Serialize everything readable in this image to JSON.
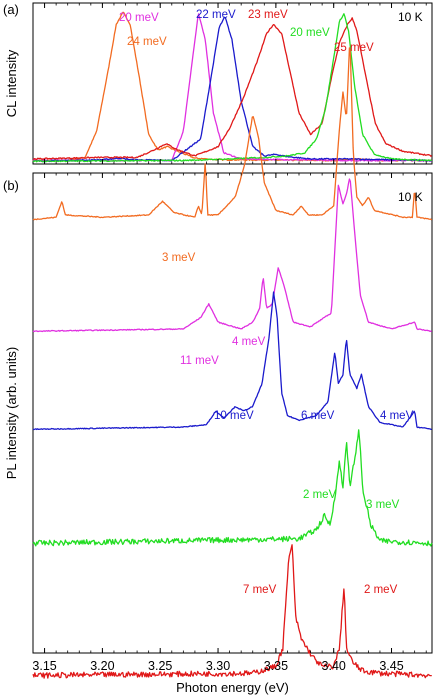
{
  "chart_data": [
    {
      "type": "line",
      "panel_label": "(a)",
      "ylabel": "CL intensity",
      "temperature": "10 K",
      "xlim": [
        3.14,
        3.485
      ],
      "ylim": [
        0,
        1.0
      ],
      "series": [
        {
          "color": "#f26b21",
          "points": [
            [
              3.14,
              0.01
            ],
            [
              3.17,
              0.01
            ],
            [
              3.185,
              0.03
            ],
            [
              3.195,
              0.2
            ],
            [
              3.205,
              0.6
            ],
            [
              3.212,
              0.9
            ],
            [
              3.218,
              0.98
            ],
            [
              3.224,
              0.9
            ],
            [
              3.232,
              0.55
            ],
            [
              3.24,
              0.18
            ],
            [
              3.248,
              0.08
            ],
            [
              3.256,
              0.1
            ],
            [
              3.265,
              0.07
            ],
            [
              3.28,
              0.025
            ],
            [
              3.3,
              0.015
            ],
            [
              3.4,
              0.01
            ],
            [
              3.42,
              0.02
            ],
            [
              3.44,
              0.01
            ],
            [
              3.485,
              0.01
            ]
          ]
        },
        {
          "color": "#e030e0",
          "points": [
            [
              3.14,
              0.01
            ],
            [
              3.26,
              0.01
            ],
            [
              3.27,
              0.2
            ],
            [
              3.277,
              0.62
            ],
            [
              3.283,
              0.97
            ],
            [
              3.289,
              0.8
            ],
            [
              3.296,
              0.32
            ],
            [
              3.305,
              0.06
            ],
            [
              3.32,
              0.02
            ],
            [
              3.41,
              0.01
            ],
            [
              3.485,
              0.01
            ]
          ]
        },
        {
          "color": "#1a1acc",
          "points": [
            [
              3.14,
              0.005
            ],
            [
              3.2,
              0.015
            ],
            [
              3.215,
              0.025
            ],
            [
              3.225,
              0.015
            ],
            [
              3.26,
              0.01
            ],
            [
              3.285,
              0.15
            ],
            [
              3.295,
              0.6
            ],
            [
              3.301,
              0.88
            ],
            [
              3.306,
              0.95
            ],
            [
              3.312,
              0.8
            ],
            [
              3.32,
              0.4
            ],
            [
              3.33,
              0.1
            ],
            [
              3.34,
              0.04
            ],
            [
              3.35,
              0.05
            ],
            [
              3.36,
              0.035
            ],
            [
              3.38,
              0.02
            ],
            [
              3.41,
              0.02
            ],
            [
              3.485,
              0.01
            ]
          ]
        },
        {
          "color": "#e01818",
          "points": [
            [
              3.14,
              0.02
            ],
            [
              3.2,
              0.03
            ],
            [
              3.23,
              0.03
            ],
            [
              3.245,
              0.08
            ],
            [
              3.255,
              0.12
            ],
            [
              3.265,
              0.08
            ],
            [
              3.28,
              0.04
            ],
            [
              3.3,
              0.1
            ],
            [
              3.31,
              0.22
            ],
            [
              3.322,
              0.42
            ],
            [
              3.334,
              0.66
            ],
            [
              3.342,
              0.84
            ],
            [
              3.348,
              0.9
            ],
            [
              3.355,
              0.84
            ],
            [
              3.362,
              0.6
            ],
            [
              3.37,
              0.32
            ],
            [
              3.38,
              0.18
            ],
            [
              3.39,
              0.25
            ],
            [
              3.398,
              0.55
            ],
            [
              3.405,
              0.78
            ],
            [
              3.412,
              0.9
            ],
            [
              3.416,
              0.94
            ],
            [
              3.42,
              0.86
            ],
            [
              3.428,
              0.55
            ],
            [
              3.436,
              0.25
            ],
            [
              3.445,
              0.12
            ],
            [
              3.46,
              0.07
            ],
            [
              3.485,
              0.04
            ]
          ]
        },
        {
          "color": "#22dd22",
          "points": [
            [
              3.14,
              0.005
            ],
            [
              3.27,
              0.01
            ],
            [
              3.31,
              0.02
            ],
            [
              3.34,
              0.03
            ],
            [
              3.36,
              0.04
            ],
            [
              3.375,
              0.06
            ],
            [
              3.385,
              0.15
            ],
            [
              3.393,
              0.35
            ],
            [
              3.4,
              0.68
            ],
            [
              3.405,
              0.92
            ],
            [
              3.409,
              0.97
            ],
            [
              3.413,
              0.85
            ],
            [
              3.418,
              0.5
            ],
            [
              3.425,
              0.18
            ],
            [
              3.435,
              0.05
            ],
            [
              3.45,
              0.02
            ],
            [
              3.485,
              0.01
            ]
          ]
        }
      ],
      "annotations": [
        {
          "text": "24 meV",
          "color": "#f26b21"
        },
        {
          "text": "20 meV",
          "color": "#e030e0"
        },
        {
          "text": "22 meV",
          "color": "#1a1acc"
        },
        {
          "text": "23 meV",
          "color": "#e01818"
        },
        {
          "text": "20 meV",
          "color": "#22dd22"
        },
        {
          "text": "25 meV",
          "color": "#e01818"
        }
      ]
    },
    {
      "type": "line",
      "panel_label": "(b)",
      "ylabel": "PL intensity (arb. units)",
      "xlabel": "Photon energy (eV)",
      "temperature": "10 K",
      "xlim": [
        3.14,
        3.485
      ],
      "xticks": [
        "3.15",
        "3.20",
        "3.25",
        "3.30",
        "3.35",
        "3.40",
        "3.45"
      ],
      "offset_series": true,
      "series": [
        {
          "color": "#f26b21",
          "offset": 0.83,
          "points": [
            [
              3.14,
              0.0
            ],
            [
              3.16,
              0.005
            ],
            [
              3.165,
              0.04
            ],
            [
              3.168,
              0.01
            ],
            [
              3.2,
              0.005
            ],
            [
              3.24,
              0.01
            ],
            [
              3.252,
              0.04
            ],
            [
              3.262,
              0.015
            ],
            [
              3.28,
              0.005
            ],
            [
              3.283,
              0.03
            ],
            [
              3.286,
              0.01
            ],
            [
              3.289,
              0.13
            ],
            [
              3.291,
              0.01
            ],
            [
              3.3,
              0.01
            ],
            [
              3.315,
              0.05
            ],
            [
              3.323,
              0.12
            ],
            [
              3.33,
              0.23
            ],
            [
              3.335,
              0.18
            ],
            [
              3.34,
              0.08
            ],
            [
              3.35,
              0.02
            ],
            [
              3.365,
              0.01
            ],
            [
              3.372,
              0.03
            ],
            [
              3.378,
              0.01
            ],
            [
              3.39,
              0.01
            ],
            [
              3.4,
              0.03
            ],
            [
              3.405,
              0.2
            ],
            [
              3.408,
              0.28
            ],
            [
              3.411,
              0.22
            ],
            [
              3.414,
              0.4
            ],
            [
              3.417,
              0.14
            ],
            [
              3.42,
              0.05
            ],
            [
              3.425,
              0.03
            ],
            [
              3.43,
              0.05
            ],
            [
              3.435,
              0.02
            ],
            [
              3.46,
              0.005
            ],
            [
              3.468,
              0.005
            ],
            [
              3.47,
              0.07
            ],
            [
              3.472,
              0.005
            ],
            [
              3.485,
              0.0
            ]
          ]
        },
        {
          "color": "#e030e0",
          "offset": 0.585,
          "points": [
            [
              3.14,
              0.0
            ],
            [
              3.27,
              0.005
            ],
            [
              3.285,
              0.03
            ],
            [
              3.292,
              0.06
            ],
            [
              3.3,
              0.02
            ],
            [
              3.32,
              0.005
            ],
            [
              3.33,
              0.02
            ],
            [
              3.336,
              0.05
            ],
            [
              3.339,
              0.12
            ],
            [
              3.342,
              0.05
            ],
            [
              3.347,
              0.06
            ],
            [
              3.352,
              0.14
            ],
            [
              3.357,
              0.1
            ],
            [
              3.365,
              0.02
            ],
            [
              3.38,
              0.01
            ],
            [
              3.398,
              0.04
            ],
            [
              3.404,
              0.32
            ],
            [
              3.408,
              0.28
            ],
            [
              3.411,
              0.3
            ],
            [
              3.414,
              0.34
            ],
            [
              3.418,
              0.22
            ],
            [
              3.423,
              0.08
            ],
            [
              3.43,
              0.02
            ],
            [
              3.45,
              0.005
            ],
            [
              3.47,
              0.02
            ],
            [
              3.472,
              0.005
            ],
            [
              3.485,
              0.0
            ]
          ]
        },
        {
          "color": "#1a1acc",
          "offset": 0.37,
          "points": [
            [
              3.14,
              0.0
            ],
            [
              3.27,
              0.005
            ],
            [
              3.29,
              0.01
            ],
            [
              3.298,
              0.04
            ],
            [
              3.305,
              0.025
            ],
            [
              3.315,
              0.05
            ],
            [
              3.322,
              0.04
            ],
            [
              3.33,
              0.05
            ],
            [
              3.338,
              0.1
            ],
            [
              3.344,
              0.2
            ],
            [
              3.348,
              0.3
            ],
            [
              3.351,
              0.25
            ],
            [
              3.355,
              0.08
            ],
            [
              3.36,
              0.03
            ],
            [
              3.37,
              0.02
            ],
            [
              3.385,
              0.03
            ],
            [
              3.395,
              0.06
            ],
            [
              3.401,
              0.17
            ],
            [
              3.404,
              0.1
            ],
            [
              3.408,
              0.12
            ],
            [
              3.411,
              0.2
            ],
            [
              3.414,
              0.12
            ],
            [
              3.42,
              0.09
            ],
            [
              3.424,
              0.12
            ],
            [
              3.43,
              0.05
            ],
            [
              3.44,
              0.015
            ],
            [
              3.46,
              0.005
            ],
            [
              3.47,
              0.04
            ],
            [
              3.472,
              0.005
            ],
            [
              3.485,
              0.0
            ]
          ]
        },
        {
          "color": "#22dd22",
          "offset": 0.12,
          "noise": true,
          "points": [
            [
              3.14,
              0.0
            ],
            [
              3.37,
              0.01
            ],
            [
              3.385,
              0.03
            ],
            [
              3.392,
              0.06
            ],
            [
              3.397,
              0.04
            ],
            [
              3.402,
              0.12
            ],
            [
              3.405,
              0.18
            ],
            [
              3.408,
              0.12
            ],
            [
              3.411,
              0.23
            ],
            [
              3.414,
              0.12
            ],
            [
              3.419,
              0.2
            ],
            [
              3.422,
              0.25
            ],
            [
              3.425,
              0.12
            ],
            [
              3.432,
              0.04
            ],
            [
              3.44,
              0.005
            ],
            [
              3.485,
              0.0
            ]
          ]
        },
        {
          "color": "#e01818",
          "offset": -0.17,
          "noise": true,
          "points": [
            [
              3.14,
              0.0
            ],
            [
              3.33,
              0.005
            ],
            [
              3.35,
              0.02
            ],
            [
              3.356,
              0.06
            ],
            [
              3.361,
              0.25
            ],
            [
              3.364,
              0.29
            ],
            [
              3.367,
              0.13
            ],
            [
              3.372,
              0.08
            ],
            [
              3.377,
              0.06
            ],
            [
              3.382,
              0.04
            ],
            [
              3.39,
              0.02
            ],
            [
              3.4,
              0.02
            ],
            [
              3.405,
              0.06
            ],
            [
              3.409,
              0.2
            ],
            [
              3.411,
              0.06
            ],
            [
              3.414,
              0.04
            ],
            [
              3.418,
              0.025
            ],
            [
              3.425,
              0.01
            ],
            [
              3.44,
              0.005
            ],
            [
              3.485,
              0.0
            ]
          ]
        }
      ],
      "annotations": [
        {
          "text": "3 meV",
          "color": "#f26b21"
        },
        {
          "text": "4 meV",
          "color": "#e030e0"
        },
        {
          "text": "11 meV",
          "color": "#e030e0"
        },
        {
          "text": "10 meV",
          "color": "#1a1acc"
        },
        {
          "text": "6 meV",
          "color": "#1a1acc"
        },
        {
          "text": "4 meV",
          "color": "#1a1acc"
        },
        {
          "text": "2 meV",
          "color": "#22dd22"
        },
        {
          "text": "3 meV",
          "color": "#22dd22"
        },
        {
          "text": "7 meV",
          "color": "#e01818"
        },
        {
          "text": "2 meV",
          "color": "#e01818"
        }
      ]
    }
  ]
}
